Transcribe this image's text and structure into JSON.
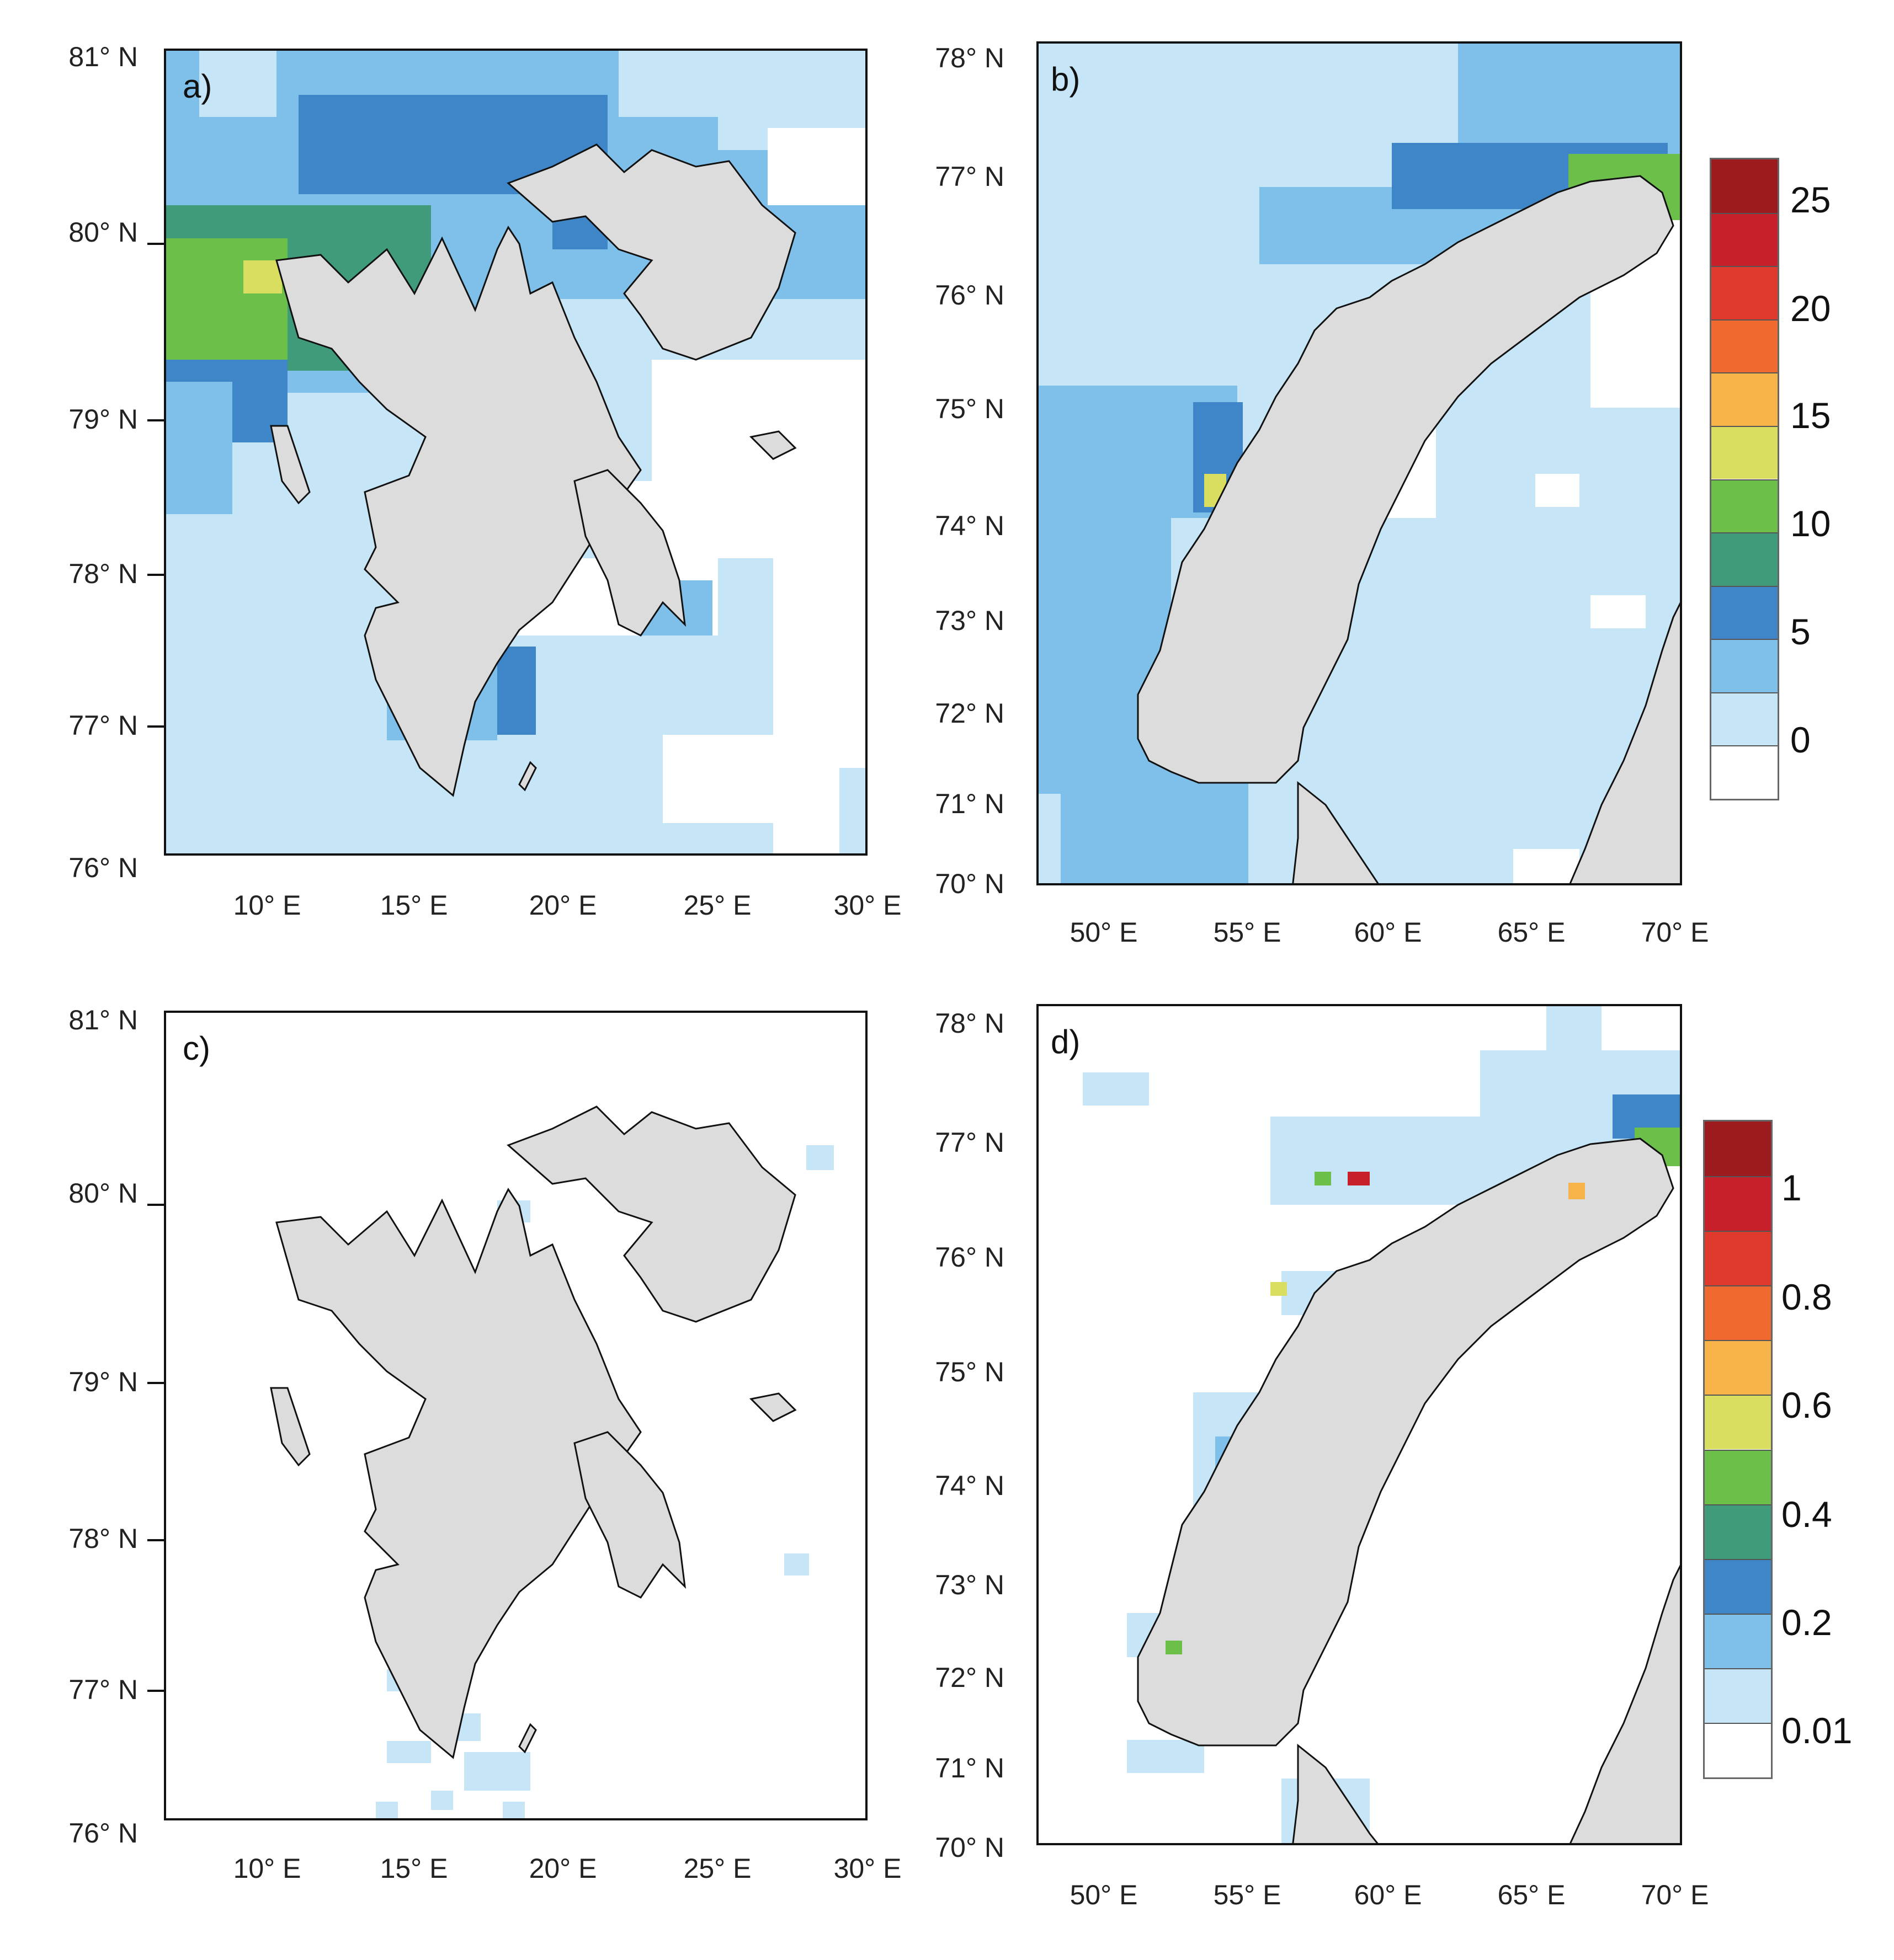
{
  "panels": {
    "a": {
      "label": "a)",
      "lat_labels": [
        "81° N",
        "80° N",
        "79° N",
        "78° N",
        "77° N",
        "76° N"
      ],
      "lon_labels": [
        "10° E",
        "15° E",
        "20° E",
        "25° E",
        "30° E"
      ]
    },
    "b": {
      "label": "b)",
      "lat_labels": [
        "78° N",
        "77° N",
        "76° N",
        "75° N",
        "74° N",
        "73° N",
        "72° N",
        "71° N",
        "70° N"
      ],
      "lon_labels": [
        "50° E",
        "55° E",
        "60° E",
        "65° E",
        "70° E"
      ]
    },
    "c": {
      "label": "c)",
      "lat_labels": [
        "81° N",
        "80° N",
        "79° N",
        "78° N",
        "77° N",
        "76° N"
      ],
      "lon_labels": [
        "10° E",
        "15° E",
        "20° E",
        "25° E",
        "30° E"
      ]
    },
    "d": {
      "label": "d)",
      "lat_labels": [
        "78° N",
        "77° N",
        "76° N",
        "75° N",
        "74° N",
        "73° N",
        "72° N",
        "71° N",
        "70° N"
      ],
      "lon_labels": [
        "50° E",
        "55° E",
        "60° E",
        "65° E",
        "70° E"
      ]
    }
  },
  "colorbar_top": {
    "labels": [
      "25",
      "20",
      "15",
      "10",
      "5",
      "0"
    ],
    "colors": [
      "#9b1b1f",
      "#c8202a",
      "#e03a2c",
      "#f06a30",
      "#f7b44a",
      "#dade60",
      "#6cc04a",
      "#3f9b7a",
      "#3f86c8",
      "#7fc0ea",
      "#c6e6f7",
      "#ffffff"
    ]
  },
  "colorbar_bottom": {
    "labels": [
      "1",
      "0.8",
      "0.6",
      "0.4",
      "0.2",
      "0.01"
    ],
    "colors": [
      "#9b1b1f",
      "#c8202a",
      "#e03a2c",
      "#f06a30",
      "#f7b44a",
      "#dade60",
      "#6cc04a",
      "#3f9b7a",
      "#3f86c8",
      "#7fc0ea",
      "#c6e6f7",
      "#ffffff"
    ]
  },
  "colors": {
    "land": "#dcdcdc",
    "coast": "#111111"
  }
}
